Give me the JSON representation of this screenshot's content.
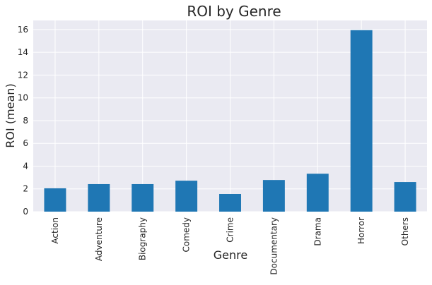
{
  "chart_data": {
    "type": "bar",
    "title": "ROI by Genre",
    "xlabel": "Genre",
    "ylabel": "ROI (mean)",
    "categories": [
      "Action",
      "Adventure",
      "Biography",
      "Comedy",
      "Crime",
      "Documentary",
      "Drama",
      "Horror",
      "Others"
    ],
    "values": [
      2.05,
      2.42,
      2.42,
      2.72,
      1.55,
      2.78,
      3.33,
      15.95,
      2.6
    ],
    "ylim": [
      0,
      16.8
    ],
    "yticks": [
      0,
      2,
      4,
      6,
      8,
      10,
      12,
      14,
      16
    ],
    "grid": true,
    "bar_color": "#1f77b4",
    "plot_background": "#eaeaf2"
  }
}
